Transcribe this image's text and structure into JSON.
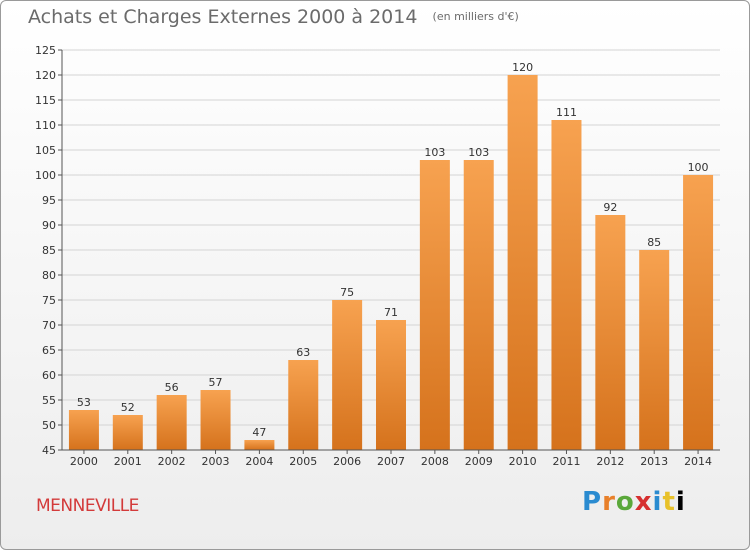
{
  "chart_data": {
    "type": "bar",
    "title": "Achats et Charges Externes 2000 à 2014",
    "unit_note": "(en milliers d'€)",
    "categories": [
      "2000",
      "2001",
      "2002",
      "2003",
      "2004",
      "2005",
      "2006",
      "2007",
      "2008",
      "2009",
      "2010",
      "2011",
      "2012",
      "2013",
      "2014"
    ],
    "values": [
      53,
      52,
      56,
      57,
      47,
      63,
      75,
      71,
      103,
      103,
      120,
      111,
      92,
      85,
      100
    ],
    "ylim": [
      45,
      125
    ],
    "yticks": [
      45,
      50,
      55,
      60,
      65,
      70,
      75,
      80,
      85,
      90,
      95,
      100,
      105,
      110,
      115,
      120,
      125
    ],
    "grid": true,
    "bar_color_top": "#f7a250",
    "bar_color_bottom": "#d5721c"
  },
  "commune": "MENNEVILLE",
  "logo": [
    "P",
    "r",
    "o",
    "x",
    "i",
    "t",
    "i"
  ],
  "colors": {
    "title": "#6b6b6b",
    "commune": "#d33a3a",
    "grid": "#d4d4d4",
    "axis": "#555555"
  }
}
